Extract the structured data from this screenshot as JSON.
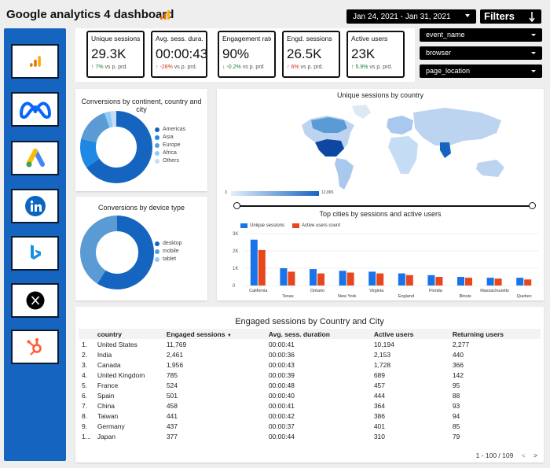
{
  "header": {
    "title": "Google analytics 4 dashboard",
    "date_range": "Jan 24, 2021 - Jan 31, 2021",
    "filters_label": "Filters"
  },
  "colors": {
    "primary_blue": "#1565c0",
    "chart_blue": "#1a73e8",
    "chart_orange": "#e8461d",
    "positive": "#188038",
    "negative": "#d93025"
  },
  "sidebar": {
    "items": [
      {
        "icon": "google-analytics-icon"
      },
      {
        "icon": "meta-icon"
      },
      {
        "icon": "google-ads-icon"
      },
      {
        "icon": "linkedin-icon"
      },
      {
        "icon": "bing-icon"
      },
      {
        "icon": "x-twitter-icon"
      },
      {
        "icon": "hubspot-icon"
      }
    ]
  },
  "kpis": [
    {
      "label": "Unique sessions",
      "value": "29.3K",
      "delta": "7%",
      "direction": "up",
      "suffix": "vs p. prd."
    },
    {
      "label": "Avg. sess. dura.",
      "value": "00:00:43",
      "delta": "-28%",
      "direction": "up",
      "suffix": "vs p. prd."
    },
    {
      "label": "Engagement rate",
      "value": "90%",
      "delta": "-0.2%",
      "direction": "down",
      "suffix": "vs p. prd"
    },
    {
      "label": "Engd. sessions",
      "value": "26.5K",
      "delta": "6%",
      "direction": "up",
      "suffix": "vs p. prd."
    },
    {
      "label": "Active users",
      "value": "23K",
      "delta": "5.9%",
      "direction": "up",
      "suffix": "vs p. prd."
    }
  ],
  "filter_dropdowns": [
    "event_name",
    "browser",
    "page_location"
  ],
  "conversions_continent": {
    "title": "Conversions by continent, country and city",
    "legend": [
      "Americas",
      "Asia",
      "Europe",
      "Africa",
      "Others"
    ],
    "colors": [
      "#1565c0",
      "#1e88e5",
      "#5b9bd5",
      "#90caf9",
      "#c5dcf5"
    ]
  },
  "conversions_device": {
    "title": "Conversions by device type",
    "legend": [
      "desktop",
      "mobile",
      "tablet"
    ],
    "colors": [
      "#1565c0",
      "#5b9bd5",
      "#90caf9"
    ]
  },
  "map": {
    "title": "Unique sessions by country",
    "scale_min": "3",
    "scale_max": "12,865"
  },
  "chart_data": {
    "type": "bar",
    "title": "Top cities by sessions and active users",
    "categories": [
      "California",
      "Texas",
      "Ontario",
      "New York",
      "Virginia",
      "England",
      "Florida",
      "Illinois",
      "Massachusetts",
      "Quebec"
    ],
    "series": [
      {
        "name": "Unique sessions",
        "values": [
          2650,
          1000,
          950,
          850,
          800,
          700,
          600,
          500,
          450,
          450
        ]
      },
      {
        "name": "Active users count",
        "values": [
          2050,
          800,
          700,
          750,
          700,
          600,
          500,
          450,
          400,
          350
        ]
      }
    ],
    "yticks": [
      "0",
      "1K",
      "2K",
      "3K"
    ],
    "ylim": [
      0,
      3000
    ]
  },
  "table": {
    "title": "Engaged sessions by Country and City",
    "columns": [
      "country",
      "Engaged sessions",
      "Avg. sess. duration",
      "Active users",
      "Returning users"
    ],
    "rows": [
      {
        "idx": "1.",
        "country": "United States",
        "engaged": "11,769",
        "duration": "00:00:41",
        "active": "10,194",
        "returning": "2,277"
      },
      {
        "idx": "2.",
        "country": "India",
        "engaged": "2,461",
        "duration": "00:00:36",
        "active": "2,153",
        "returning": "440"
      },
      {
        "idx": "3.",
        "country": "Canada",
        "engaged": "1,956",
        "duration": "00:00:43",
        "active": "1,728",
        "returning": "366"
      },
      {
        "idx": "4.",
        "country": "United Kingdom",
        "engaged": "785",
        "duration": "00:00:39",
        "active": "689",
        "returning": "142"
      },
      {
        "idx": "5.",
        "country": "France",
        "engaged": "524",
        "duration": "00:00:48",
        "active": "457",
        "returning": "95"
      },
      {
        "idx": "6.",
        "country": "Spain",
        "engaged": "501",
        "duration": "00:00:40",
        "active": "444",
        "returning": "88"
      },
      {
        "idx": "7.",
        "country": "China",
        "engaged": "458",
        "duration": "00:00:41",
        "active": "364",
        "returning": "93"
      },
      {
        "idx": "8.",
        "country": "Taiwan",
        "engaged": "441",
        "duration": "00:00:42",
        "active": "386",
        "returning": "94"
      },
      {
        "idx": "9.",
        "country": "Germany",
        "engaged": "437",
        "duration": "00:00:37",
        "active": "401",
        "returning": "85"
      },
      {
        "idx": "1...",
        "country": "Japan",
        "engaged": "377",
        "duration": "00:00:44",
        "active": "310",
        "returning": "79"
      }
    ],
    "pagination": "1 - 100 / 109"
  }
}
